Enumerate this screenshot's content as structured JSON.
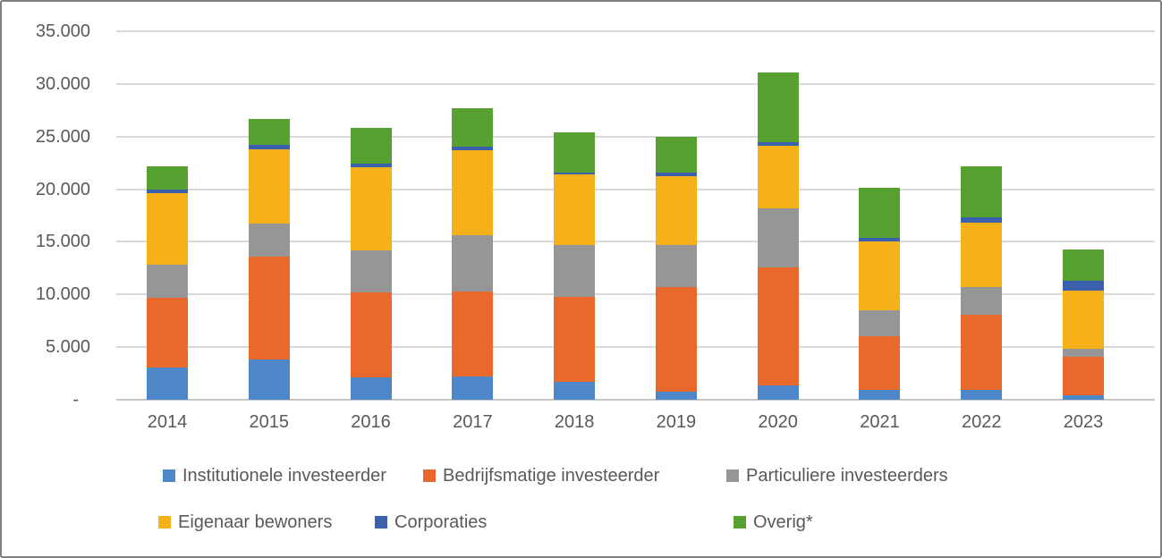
{
  "chart_data": {
    "type": "bar",
    "stacked": true,
    "title": "",
    "xlabel": "",
    "ylabel": "",
    "categories": [
      "2014",
      "2015",
      "2016",
      "2017",
      "2018",
      "2019",
      "2020",
      "2021",
      "2022",
      "2023"
    ],
    "series": [
      {
        "name": "Institutionele investeerder",
        "color": "#4E87C8",
        "values": [
          3100,
          3800,
          2100,
          2200,
          1700,
          800,
          1400,
          900,
          900,
          400
        ]
      },
      {
        "name": "Bedrijfsmatige investeerder",
        "color": "#E8692B",
        "values": [
          6600,
          9800,
          8100,
          8100,
          8100,
          9900,
          11200,
          5100,
          7200,
          3700
        ]
      },
      {
        "name": "Particuliere investeerders",
        "color": "#969696",
        "values": [
          3100,
          3100,
          4000,
          5300,
          4900,
          4000,
          5600,
          2500,
          2600,
          700
        ]
      },
      {
        "name": "Eigenaar bewoners",
        "color": "#F5B117",
        "values": [
          6800,
          7100,
          7900,
          8100,
          6700,
          6500,
          5900,
          6500,
          6100,
          5600
        ]
      },
      {
        "name": "Corporaties",
        "color": "#3B60AE",
        "values": [
          400,
          400,
          300,
          300,
          200,
          400,
          400,
          400,
          500,
          900
        ]
      },
      {
        "name": "Overig*",
        "color": "#57A032",
        "values": [
          2200,
          2500,
          3400,
          3700,
          3800,
          3400,
          6600,
          4700,
          4900,
          3000
        ]
      }
    ],
    "totals": [
      22200,
      26700,
      25800,
      27700,
      25400,
      25000,
      31100,
      20100,
      22200,
      14300
    ],
    "ylim": [
      0,
      35000
    ],
    "ytick_interval": 5000,
    "yticks": [
      0,
      5000,
      10000,
      15000,
      20000,
      25000,
      30000,
      35000
    ],
    "ytick_labels": [
      "-",
      "5.000",
      "10.000",
      "15.000",
      "20.000",
      "25.000",
      "30.000",
      "35.000"
    ],
    "grid": true,
    "legend_position": "bottom",
    "legend_rows": [
      [
        "Institutionele investeerder",
        "Bedrijfsmatige investeerder",
        "Particuliere investeerders"
      ],
      [
        "Eigenaar bewoners",
        "Corporaties",
        "Overig*"
      ]
    ]
  }
}
